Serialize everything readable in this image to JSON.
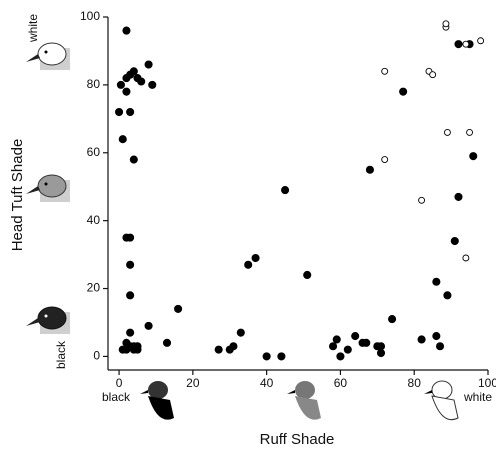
{
  "chart_data": {
    "type": "scatter",
    "x_label": "Ruff Shade",
    "y_label": "Head Tuft Shade",
    "x_low_label": "black",
    "x_high_label": "white",
    "y_low_label": "black",
    "y_high_label": "white",
    "xlim": [
      -3,
      100
    ],
    "ylim": [
      -4,
      100
    ],
    "xticks": [
      0,
      20,
      40,
      60,
      80,
      100
    ],
    "yticks": [
      0,
      20,
      40,
      60,
      80,
      100
    ],
    "grid": false,
    "series": [
      {
        "color": "#000000",
        "filled": true,
        "x": [
          2,
          8,
          0.5,
          2,
          3,
          2,
          4,
          5,
          6,
          9,
          0,
          3,
          1,
          4,
          2,
          3,
          3,
          3,
          3,
          2,
          3,
          4,
          5,
          1,
          2,
          4,
          5,
          8,
          13,
          16,
          27,
          30,
          31,
          33,
          35,
          37,
          40,
          44,
          45,
          51,
          58,
          59,
          60,
          62,
          64,
          66,
          67,
          68,
          70,
          71,
          71,
          74,
          77,
          82,
          86,
          86,
          87,
          89,
          91,
          92,
          92,
          95,
          96
        ],
        "values": [
          96,
          86,
          80,
          82,
          83,
          78,
          84,
          82,
          81,
          80,
          72,
          72,
          64,
          58,
          35,
          35,
          27,
          18,
          7,
          4,
          3,
          3,
          3,
          2,
          2,
          2,
          2,
          9,
          4,
          14,
          2,
          2,
          3,
          7,
          27,
          29,
          0,
          0,
          49,
          24,
          3,
          5,
          0,
          2,
          6,
          4,
          4,
          55,
          3,
          1,
          3,
          11,
          78,
          5,
          6,
          22,
          3,
          18,
          34,
          47,
          92,
          92,
          59
        ]
      },
      {
        "color": "#000000",
        "filled": false,
        "x": [
          72,
          84,
          85,
          88.6,
          88.6,
          94,
          98,
          89,
          95,
          72,
          82,
          94
        ],
        "values": [
          84,
          84,
          83,
          97,
          98,
          92,
          93,
          66,
          66,
          58,
          46,
          29
        ]
      }
    ]
  }
}
